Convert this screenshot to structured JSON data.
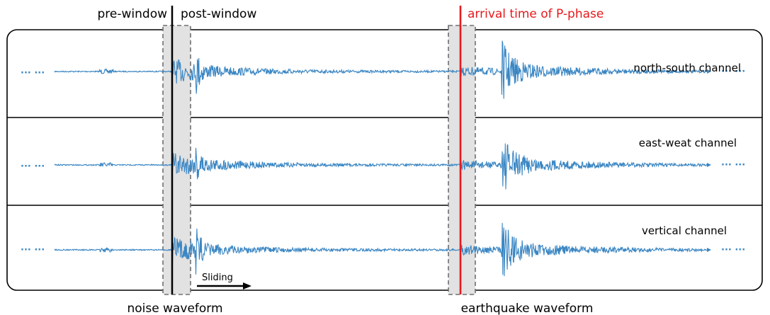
{
  "labels": {
    "pre_window": "pre-window",
    "post_window": "post-window",
    "arrival": "arrival time of P-phase",
    "noise": "noise waveform",
    "earthquake": "earthquake waveform",
    "sliding": "Sliding",
    "ellipsis": "··· ···"
  },
  "channels": [
    {
      "label": "north-south channel"
    },
    {
      "label": "east-weat channel"
    },
    {
      "label": "vertical channel"
    }
  ],
  "colors": {
    "waveform": "#3a86c3",
    "arrival_line": "#e8191c",
    "window_fill": "#e2e2e2",
    "window_stroke": "#707070",
    "frame": "#000000",
    "text": "#000000",
    "arrival_text": "#e8191c"
  }
}
